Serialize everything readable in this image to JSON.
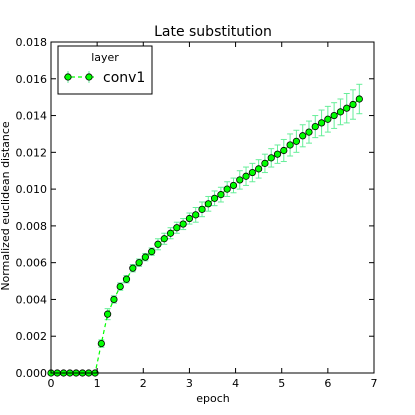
{
  "chart_data": {
    "type": "line",
    "title": "Late substitution",
    "xlabel": "epoch",
    "ylabel": "Normalized euclidean distance",
    "xlim": [
      0,
      7
    ],
    "ylim": [
      0,
      0.018
    ],
    "xticks": [
      0,
      1,
      2,
      3,
      4,
      5,
      6,
      7
    ],
    "xtick_labels": [
      "0",
      "1",
      "2",
      "3",
      "4",
      "5",
      "6",
      "7"
    ],
    "yticks": [
      0,
      0.002,
      0.004,
      0.006,
      0.008,
      0.01,
      0.012,
      0.014,
      0.016,
      0.018
    ],
    "ytick_labels": [
      "0.000",
      "0.002",
      "0.004",
      "0.006",
      "0.008",
      "0.010",
      "0.012",
      "0.014",
      "0.016",
      "0.018"
    ],
    "grid": false,
    "legend": {
      "title": "layer",
      "placement": "top-left"
    },
    "series": [
      {
        "name": "conv1",
        "color": "#00ff00",
        "errorbar_color": "#66ee99",
        "x": [
          0,
          0.136,
          0.273,
          0.409,
          0.545,
          0.682,
          0.818,
          0.955,
          1.091,
          1.227,
          1.364,
          1.5,
          1.636,
          1.773,
          1.909,
          2.045,
          2.182,
          2.318,
          2.455,
          2.591,
          2.727,
          2.864,
          3.0,
          3.136,
          3.273,
          3.409,
          3.545,
          3.682,
          3.818,
          3.955,
          4.091,
          4.227,
          4.364,
          4.5,
          4.636,
          4.773,
          4.909,
          5.045,
          5.182,
          5.318,
          5.455,
          5.591,
          5.727,
          5.864,
          6.0,
          6.136,
          6.273,
          6.409,
          6.545,
          6.682
        ],
        "y": [
          0,
          0,
          0,
          0,
          0,
          0,
          0,
          0,
          0.0016,
          0.0032,
          0.004,
          0.0047,
          0.0051,
          0.0057,
          0.006,
          0.0063,
          0.0066,
          0.007,
          0.0073,
          0.0076,
          0.0079,
          0.0081,
          0.0084,
          0.0086,
          0.0089,
          0.0092,
          0.0095,
          0.0097,
          0.01,
          0.0102,
          0.0105,
          0.0107,
          0.0109,
          0.0111,
          0.0114,
          0.0117,
          0.0119,
          0.0121,
          0.0124,
          0.0126,
          0.0129,
          0.0131,
          0.0134,
          0.0136,
          0.0138,
          0.014,
          0.0142,
          0.0144,
          0.0146,
          0.0149
        ],
        "err": [
          0,
          0,
          0,
          0,
          0,
          0,
          0,
          0,
          0.0002,
          0.0003,
          0.0002,
          0.0002,
          0.0002,
          0.0002,
          0.0002,
          0.0002,
          0.0002,
          0.0003,
          0.0003,
          0.0003,
          0.0003,
          0.0003,
          0.0003,
          0.0004,
          0.0004,
          0.0004,
          0.0004,
          0.0004,
          0.0004,
          0.0004,
          0.0005,
          0.0005,
          0.0005,
          0.0005,
          0.0005,
          0.0005,
          0.0005,
          0.0006,
          0.0006,
          0.0006,
          0.0006,
          0.0006,
          0.0006,
          0.0007,
          0.0007,
          0.0007,
          0.0007,
          0.0008,
          0.0008,
          0.0008
        ]
      }
    ]
  }
}
